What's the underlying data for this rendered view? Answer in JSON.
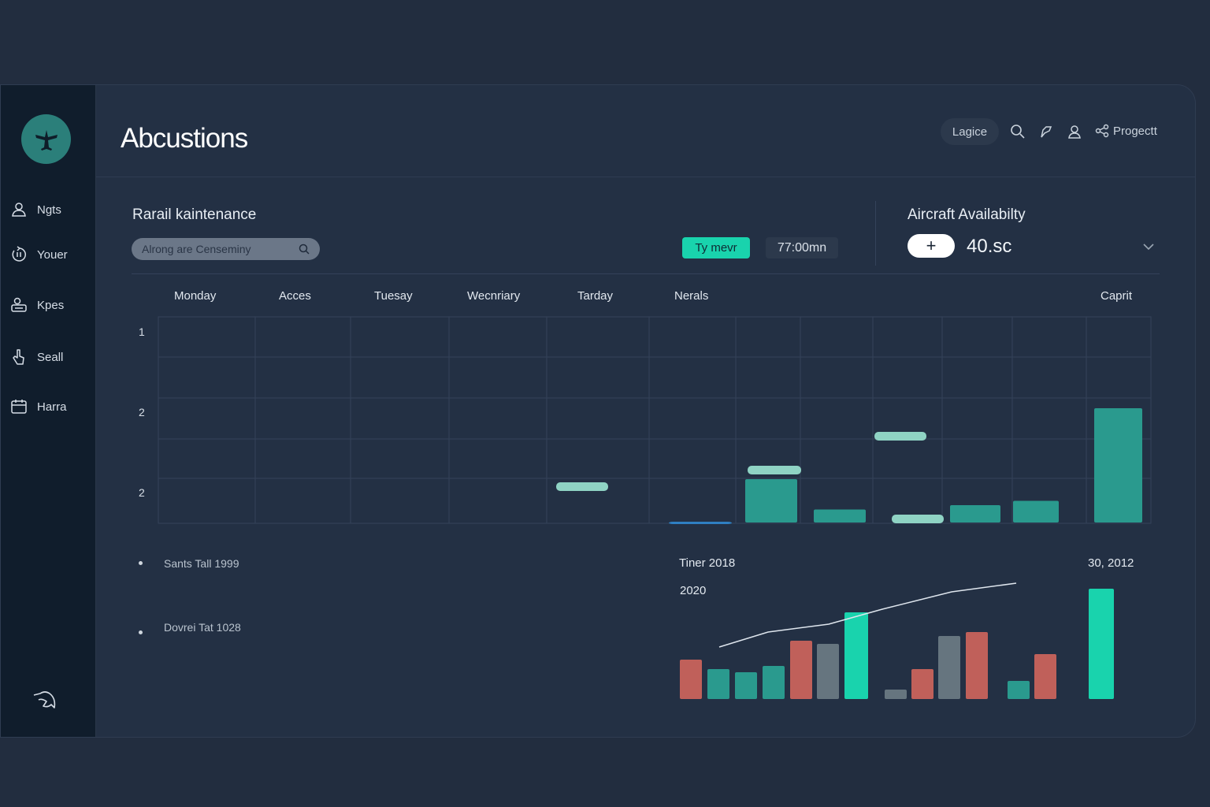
{
  "app": {
    "title": "Abcustions"
  },
  "header": {
    "pill_label": "Lagice",
    "project_label": "Progectt"
  },
  "sidebar": {
    "items": [
      {
        "label": "Ngts",
        "icon": "users-icon"
      },
      {
        "label": "Youer",
        "icon": "refresh-icon"
      },
      {
        "label": "Kpes",
        "icon": "user-card-icon"
      },
      {
        "label": "Seall",
        "icon": "pointer-icon"
      },
      {
        "label": "Harra",
        "icon": "calendar-icon"
      }
    ]
  },
  "maintenance": {
    "title": "Rarail kaintenance",
    "search_placeholder": "Alrong are Censeminy",
    "action_label": "Ty mevr",
    "time_value": "77:00mn"
  },
  "availability": {
    "title": "Aircraft Availabilty",
    "value": "40.sc"
  },
  "schedule": {
    "columns": [
      "Monday",
      "Acces",
      "Tuesay",
      "Wecnriary",
      "Tarday",
      "Nerals",
      "Caprit"
    ],
    "row_labels": [
      "1",
      "2",
      "2"
    ]
  },
  "legend": {
    "items": [
      "Sants Tall 1999",
      "Dovrei Tat 1028"
    ]
  },
  "mini_chart": {
    "label_left": "Tiner 2018",
    "label_year": "2020",
    "label_right": "30, 2012"
  },
  "colors": {
    "accent": "#19d3ad",
    "teal": "#2a9a8e",
    "red": "#c0605a",
    "slate": "#66757f",
    "background": "#222d3f",
    "sidebar": "#101d2c"
  },
  "chart_data": [
    {
      "type": "bar",
      "series": [
        {
          "values": [
            0.5,
            0.6,
            1.0,
            1.4,
            0.3,
            0.5,
            1.2,
            0.4,
            0.5,
            2.2
          ]
        }
      ]
    },
    {
      "type": "bar",
      "series": [
        {
          "values": [
            50,
            38,
            34,
            42,
            74,
            70,
            110,
            12,
            38,
            80,
            85,
            23,
            57,
            140
          ]
        }
      ]
    }
  ]
}
